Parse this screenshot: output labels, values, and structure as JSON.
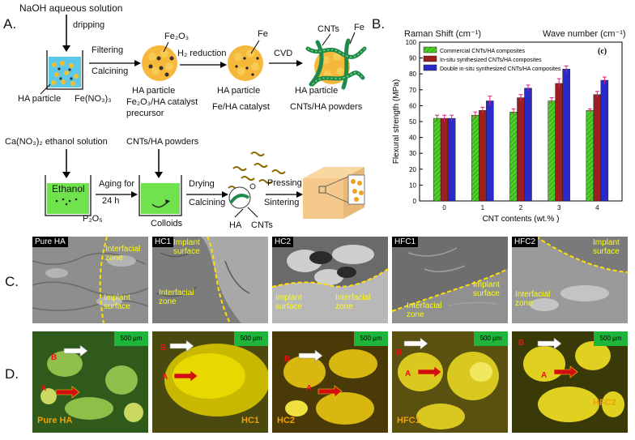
{
  "panel_letters": {
    "a": "A.",
    "b": "B.",
    "c": "C.",
    "d": "D."
  },
  "schemeA": {
    "naoh": "NaOH aqueous solution",
    "dripping": "dripping",
    "filtering": "Filtering",
    "calcining": "Calcining",
    "fe2o3": "Fe₂O₃",
    "h2_reduction": "H₂ reduction",
    "fe_top": "Fe",
    "cvd": "CVD",
    "cnts": "CNTs",
    "fe_right": "Fe",
    "ha_particle": "HA particle",
    "fe_no3": "Fe(NO₃)₃",
    "ha_particle2": "HA particle",
    "fe2o3_cat": "Fe₂O₃/HA catalyst",
    "precursor": "precursor",
    "ha_particle3": "HA particle",
    "fe_cat": "Fe/HA catalyst",
    "ha_particle4": "HA particle",
    "cnts_powders": "CNTs/HA powders"
  },
  "schemeB": {
    "cano3": "Ca(NO₃)₂ ethanol solution",
    "cnts_ha": "CNTs/HA powders",
    "ethanol": "Ethanol",
    "aging": "Aging for",
    "hours": "24 h",
    "p2o5": "P₂O₅",
    "colloids": "Colloids",
    "drying": "Drying",
    "calcining": "Calcining",
    "pressing": "Pressing",
    "sintering": "Sintering",
    "ha": "HA",
    "cnts": "CNTs"
  },
  "chart_data": {
    "type": "bar",
    "top_left_label": "Raman Shift (cm⁻¹)",
    "top_right_label": "Wave number (cm⁻¹)",
    "panel_tag": "(c)",
    "xlabel": "CNT contents (wt.% )",
    "ylabel": "Flexural strength (MPa)",
    "categories": [
      "0",
      "1",
      "2",
      "3",
      "4"
    ],
    "ylim": [
      0,
      100
    ],
    "yticks": [
      "0",
      "10",
      "20",
      "30",
      "40",
      "50",
      "60",
      "70",
      "80",
      "90",
      "100"
    ],
    "series": [
      {
        "name": "Commercial CNTs/HA composites",
        "values": [
          52,
          54,
          56,
          63,
          57
        ],
        "errors": [
          2,
          2,
          2,
          2,
          1
        ],
        "color": "#4fd12a"
      },
      {
        "name": "In-situ synthesized CNTs/HA composites",
        "values": [
          52,
          57,
          65,
          74,
          67
        ],
        "errors": [
          2,
          2,
          2,
          3,
          2
        ],
        "color": "#9c1f1f"
      },
      {
        "name": "Double in-situ synthesized CNTs/HA composites",
        "values": [
          52,
          63,
          71,
          83,
          76
        ],
        "errors": [
          2,
          3,
          2,
          2,
          2
        ],
        "color": "#2a2ac8"
      }
    ],
    "legend_position": "top-left"
  },
  "sem_panels": [
    {
      "tag": "Pure HA",
      "labels": [
        "Interfacial zone",
        "Implant surface"
      ]
    },
    {
      "tag": "HC1",
      "labels": [
        "Implant surface",
        "Interfacial zone"
      ]
    },
    {
      "tag": "HC2",
      "labels": [
        "Implant surface",
        "Interfacial zone"
      ]
    },
    {
      "tag": "HFC1",
      "labels": [
        "Implant surface",
        "Interfacial zone"
      ]
    },
    {
      "tag": "HFC2",
      "labels": [
        "Implant surface",
        "Interfacial zone"
      ]
    }
  ],
  "fluo_panels": [
    {
      "name": "Pure HA",
      "scale": "500 μm"
    },
    {
      "name": "HC1",
      "scale": "500 μm"
    },
    {
      "name": "HC2",
      "scale": "500 μm"
    },
    {
      "name": "HFC1",
      "scale": "500 μm"
    },
    {
      "name": "HFC2",
      "scale": "500 μm"
    }
  ],
  "markers": {
    "a": "A",
    "b": "B"
  }
}
